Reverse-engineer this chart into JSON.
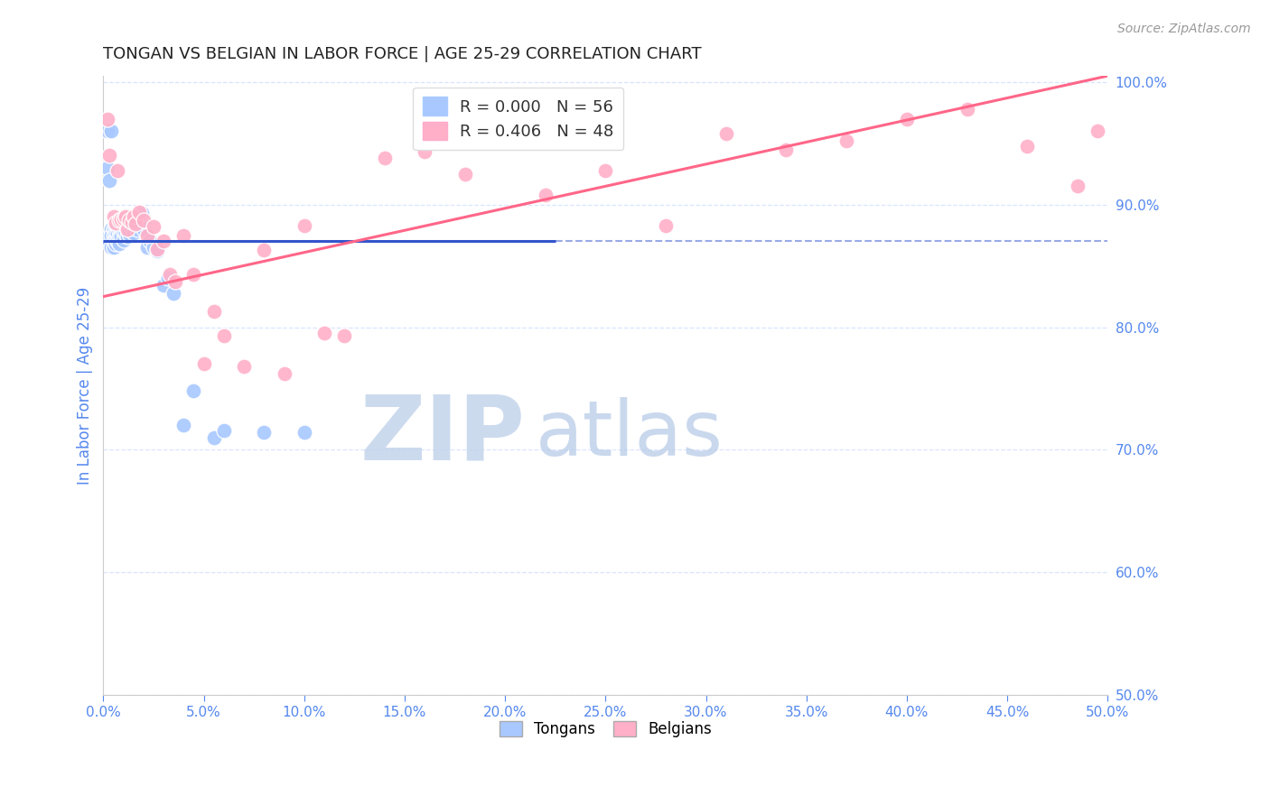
{
  "title": "TONGAN VS BELGIAN IN LABOR FORCE | AGE 25-29 CORRELATION CHART",
  "source": "Source: ZipAtlas.com",
  "ylabel": "In Labor Force | Age 25-29",
  "xlim": [
    0.0,
    0.5
  ],
  "ylim": [
    0.5,
    1.005
  ],
  "xticks": [
    0.0,
    0.05,
    0.1,
    0.15,
    0.2,
    0.25,
    0.3,
    0.35,
    0.4,
    0.45,
    0.5
  ],
  "yticks_right": [
    0.5,
    0.6,
    0.7,
    0.8,
    0.9,
    1.0
  ],
  "tongan_R": 0.0,
  "tongan_N": 56,
  "belgian_R": 0.406,
  "belgian_N": 48,
  "blue_color": "#A8C8FF",
  "pink_color": "#FFB0C8",
  "blue_line_color": "#3355CC",
  "pink_line_color": "#FF6688",
  "watermark_zip_color": "#C0D0E8",
  "watermark_atlas_color": "#B8D0F0",
  "grid_color": "#D8E4FF",
  "axis_color": "#5588EE",
  "title_color": "#222222",
  "tongan_x": [
    0.001,
    0.002,
    0.002,
    0.003,
    0.003,
    0.003,
    0.004,
    0.004,
    0.004,
    0.004,
    0.005,
    0.005,
    0.005,
    0.005,
    0.006,
    0.006,
    0.006,
    0.006,
    0.007,
    0.007,
    0.007,
    0.008,
    0.008,
    0.008,
    0.009,
    0.009,
    0.01,
    0.01,
    0.01,
    0.011,
    0.011,
    0.012,
    0.012,
    0.013,
    0.013,
    0.014,
    0.015,
    0.015,
    0.016,
    0.017,
    0.018,
    0.019,
    0.02,
    0.022,
    0.023,
    0.025,
    0.027,
    0.03,
    0.032,
    0.035,
    0.04,
    0.045,
    0.055,
    0.06,
    0.08,
    0.1
  ],
  "tongan_y": [
    0.87,
    0.96,
    0.93,
    0.87,
    0.875,
    0.92,
    0.88,
    0.875,
    0.865,
    0.96,
    0.88,
    0.875,
    0.87,
    0.865,
    0.882,
    0.876,
    0.871,
    0.868,
    0.883,
    0.876,
    0.87,
    0.879,
    0.873,
    0.868,
    0.88,
    0.874,
    0.885,
    0.878,
    0.871,
    0.882,
    0.876,
    0.88,
    0.874,
    0.88,
    0.876,
    0.882,
    0.884,
    0.877,
    0.885,
    0.88,
    0.887,
    0.893,
    0.88,
    0.865,
    0.87,
    0.865,
    0.862,
    0.834,
    0.84,
    0.828,
    0.72,
    0.748,
    0.71,
    0.716,
    0.714,
    0.714
  ],
  "belgian_x": [
    0.002,
    0.003,
    0.005,
    0.006,
    0.007,
    0.008,
    0.009,
    0.01,
    0.011,
    0.012,
    0.013,
    0.014,
    0.015,
    0.016,
    0.018,
    0.02,
    0.022,
    0.025,
    0.027,
    0.03,
    0.033,
    0.036,
    0.04,
    0.045,
    0.05,
    0.055,
    0.06,
    0.07,
    0.08,
    0.09,
    0.1,
    0.11,
    0.12,
    0.14,
    0.16,
    0.18,
    0.2,
    0.22,
    0.25,
    0.28,
    0.31,
    0.34,
    0.37,
    0.4,
    0.43,
    0.46,
    0.485,
    0.495
  ],
  "belgian_y": [
    0.97,
    0.94,
    0.89,
    0.885,
    0.928,
    0.887,
    0.888,
    0.889,
    0.89,
    0.88,
    0.887,
    0.886,
    0.89,
    0.884,
    0.894,
    0.887,
    0.875,
    0.882,
    0.864,
    0.87,
    0.843,
    0.837,
    0.875,
    0.843,
    0.77,
    0.813,
    0.793,
    0.768,
    0.863,
    0.762,
    0.883,
    0.795,
    0.793,
    0.938,
    0.943,
    0.925,
    0.97,
    0.908,
    0.928,
    0.883,
    0.958,
    0.945,
    0.952,
    0.97,
    0.978,
    0.948,
    0.915,
    0.96
  ],
  "blue_trendline_x": [
    0.0,
    0.225
  ],
  "blue_trendline_y": [
    0.87,
    0.87
  ],
  "pink_trendline_x": [
    0.0,
    0.5
  ],
  "pink_trendline_y": [
    0.825,
    1.005
  ]
}
